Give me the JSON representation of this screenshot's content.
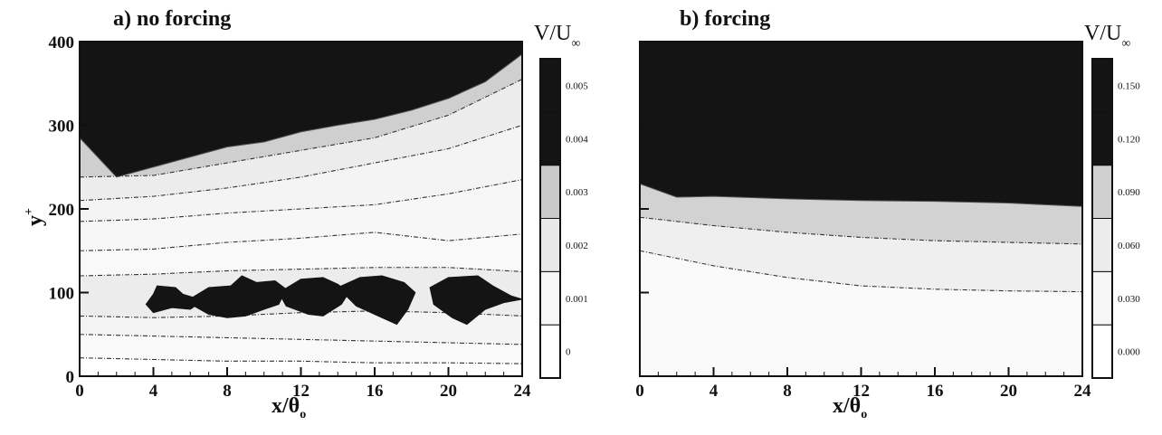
{
  "chart_data": [
    {
      "type": "heatmap",
      "panel_title": "a) no forcing",
      "xlabel": "x/θ",
      "xlabel_subscript": "o",
      "ylabel": "y",
      "ylabel_superscript": "+",
      "colorbar_title": "V/U",
      "colorbar_title_subscript": "∞",
      "xlim": [
        0,
        24
      ],
      "ylim": [
        0,
        400
      ],
      "x_ticks": [
        0,
        4,
        8,
        12,
        16,
        20,
        24
      ],
      "y_ticks": [
        0,
        100,
        200,
        300,
        400
      ],
      "colorbar_levels": [
        "0",
        "0.001",
        "0.002",
        "0.003",
        "0.004",
        "0.005"
      ],
      "colorbar_colors": [
        "#ffffff",
        "#f6f6f6",
        "#e8e8e8",
        "#c9c9c9",
        "#141414",
        "#141414"
      ],
      "contours": [
        {
          "level": 0.004,
          "x": [
            0,
            2,
            4,
            6,
            8,
            10,
            12,
            14,
            16,
            18,
            20,
            22,
            24
          ],
          "y": [
            285,
            238,
            250,
            262,
            274,
            280,
            292,
            300,
            307,
            318,
            332,
            352,
            385
          ]
        },
        {
          "level": 0.003,
          "x": [
            0,
            4,
            8,
            12,
            16,
            20,
            24
          ],
          "y": [
            238,
            240,
            255,
            270,
            285,
            312,
            355
          ]
        },
        {
          "level": 0.002,
          "x": [
            0,
            4,
            8,
            12,
            16,
            20,
            24
          ],
          "y": [
            210,
            215,
            225,
            238,
            255,
            272,
            300
          ]
        },
        {
          "level": 0.0015,
          "x": [
            0,
            4,
            8,
            12,
            16,
            20,
            24
          ],
          "y": [
            185,
            188,
            195,
            200,
            205,
            218,
            235
          ]
        },
        {
          "level": 0.001,
          "x": [
            0,
            4,
            8,
            12,
            16,
            20,
            24
          ],
          "y": [
            150,
            152,
            160,
            165,
            172,
            162,
            170
          ]
        },
        {
          "level": 0.0007,
          "x": [
            0,
            4,
            8,
            12,
            16,
            20,
            24
          ],
          "y": [
            120,
            122,
            126,
            128,
            130,
            130,
            125
          ]
        },
        {
          "level": 0.0005,
          "x": [
            0,
            4,
            8,
            12,
            16,
            20,
            24
          ],
          "y": [
            72,
            70,
            72,
            76,
            78,
            76,
            72
          ]
        },
        {
          "level": 0.0003,
          "x": [
            0,
            4,
            8,
            12,
            16,
            20,
            24
          ],
          "y": [
            50,
            48,
            46,
            44,
            42,
            40,
            38
          ]
        },
        {
          "level": 0.0001,
          "x": [
            0,
            4,
            8,
            12,
            16,
            20,
            24
          ],
          "y": [
            22,
            20,
            18,
            18,
            16,
            16,
            15
          ]
        }
      ],
      "high_regions": [
        {
          "x": [
            4.2,
            5.2,
            5.6,
            6.2,
            6.4,
            6.0,
            5.0,
            4.0,
            3.6,
            4.0
          ],
          "y": [
            108,
            106,
            98,
            94,
            86,
            80,
            82,
            76,
            86,
            98
          ]
        },
        {
          "x": [
            5.8,
            7.0,
            8.2,
            8.8,
            9.6,
            10.6,
            11.2,
            10.8,
            10.0,
            9.0,
            8.0,
            7.0,
            6.2
          ],
          "y": [
            90,
            106,
            108,
            120,
            112,
            114,
            104,
            86,
            80,
            72,
            70,
            74,
            84
          ]
        },
        {
          "x": [
            10.8,
            12.0,
            13.2,
            14.0,
            14.6,
            14.2,
            13.2,
            12.4,
            11.2
          ],
          "y": [
            100,
            116,
            118,
            110,
            100,
            86,
            72,
            74,
            84
          ]
        },
        {
          "x": [
            14.0,
            15.2,
            16.4,
            17.6,
            18.2,
            17.8,
            17.2,
            16.4,
            15.0
          ],
          "y": [
            106,
            118,
            120,
            112,
            100,
            80,
            62,
            70,
            84
          ]
        },
        {
          "x": [
            19.0,
            20.0,
            21.6,
            22.4,
            23.4,
            24.0,
            23.0,
            22.0,
            21.0,
            20.2,
            19.2
          ],
          "y": [
            106,
            118,
            120,
            108,
            96,
            92,
            88,
            80,
            62,
            70,
            86
          ]
        }
      ]
    },
    {
      "type": "heatmap",
      "panel_title": "b) forcing",
      "xlabel": "x/θ",
      "xlabel_subscript": "o",
      "colorbar_title": "V/U",
      "colorbar_title_subscript": "∞",
      "xlim": [
        0,
        24
      ],
      "ylim": [
        0,
        400
      ],
      "x_ticks": [
        0,
        4,
        8,
        12,
        16,
        20,
        24
      ],
      "y_ticks": [
        0,
        100,
        200,
        300,
        400
      ],
      "colorbar_levels": [
        "0.000",
        "0.030",
        "0.060",
        "0.090",
        "0.120",
        "0.150"
      ],
      "colorbar_colors": [
        "#ffffff",
        "#f6f6f6",
        "#ececec",
        "#cfcfcf",
        "#141414",
        "#141414"
      ],
      "contours": [
        {
          "level": 0.09,
          "x": [
            0,
            2,
            4,
            8,
            12,
            16,
            20,
            24
          ],
          "y": [
            230,
            214,
            215,
            212,
            210,
            209,
            207,
            203
          ]
        },
        {
          "level": 0.06,
          "x": [
            0,
            4,
            8,
            12,
            16,
            20,
            24
          ],
          "y": [
            190,
            180,
            172,
            166,
            162,
            160,
            158
          ]
        },
        {
          "level": 0.03,
          "x": [
            0,
            4,
            8,
            12,
            16,
            20,
            24
          ],
          "y": [
            150,
            132,
            118,
            108,
            104,
            102,
            101
          ]
        }
      ],
      "high_regions": []
    }
  ]
}
